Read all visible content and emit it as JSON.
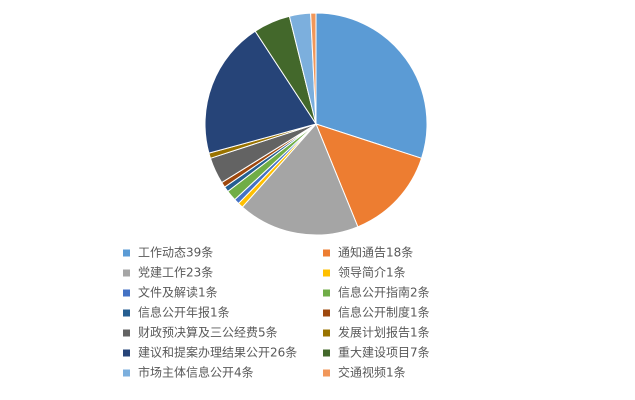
{
  "chart_data": {
    "type": "pie",
    "categories": [
      "工作动态39条",
      "通知通告18条",
      "党建工作23条",
      "领导简介1条",
      "文件及解读1条",
      "信息公开指南2条",
      "信息公开年报1条",
      "信息公开制度1条",
      "财政预决算及三公经费5条",
      "发展计划报告1条",
      "建议和提案办理结果公开26条",
      "重大建设项目7条",
      "市场主体信息公开4条",
      "交通视频1条"
    ],
    "values": [
      39,
      18,
      23,
      1,
      1,
      2,
      1,
      1,
      5,
      1,
      26,
      7,
      4,
      1
    ],
    "colors": [
      "#5b9bd5",
      "#ed7d31",
      "#a5a5a5",
      "#ffc000",
      "#4472c4",
      "#70ad47",
      "#255e91",
      "#9e480e",
      "#636363",
      "#997300",
      "#264478",
      "#43682b",
      "#7cafdd",
      "#f1975a"
    ],
    "legend": "bottom"
  }
}
